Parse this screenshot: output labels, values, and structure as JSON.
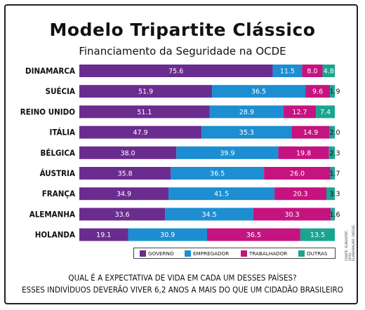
{
  "title": "Modelo Tripartite Clássico",
  "subtitle": "Financiamento da Seguridade na OCDE",
  "question_line1": "QUAL É A EXPECTATIVA DE VIDA EM CADA UM DESSES PAÍSES?",
  "question_line2": "ESSES INDIVÍDUOS DEVERÃO VIVER 6,2 ANOS A MAIS DO QUE UM CIDADÃO BRASILEIRO",
  "source_line1": "FONTE: EUROSTAT, 2015.",
  "source_line2": "ELABORAÇÃO: DIEESE.",
  "chart_data": {
    "type": "bar",
    "orientation": "horizontal",
    "stacked": true,
    "title": "Modelo Tripartite Clássico",
    "subtitle": "Financiamento da Seguridade na OCDE",
    "categories": [
      "DINAMARCA",
      "SUÉCIA",
      "REINO UNIDO",
      "ITÁLIA",
      "BÉLGICA",
      "ÁUSTRIA",
      "FRANÇA",
      "ALEMANHA",
      "HOLANDA"
    ],
    "series": [
      {
        "name": "GOVERNO",
        "color": "#6a2c8f",
        "values": [
          75.6,
          51.9,
          51.1,
          47.9,
          38.0,
          35.8,
          34.9,
          33.6,
          19.1
        ]
      },
      {
        "name": "EMPREGADOR",
        "color": "#1c8ed1",
        "values": [
          11.5,
          36.5,
          28.9,
          35.3,
          39.9,
          36.5,
          41.5,
          34.5,
          30.9
        ]
      },
      {
        "name": "TRABALHADOR",
        "color": "#c5137f",
        "values": [
          8.0,
          9.6,
          12.7,
          14.9,
          19.8,
          26.0,
          20.3,
          30.3,
          36.5
        ]
      },
      {
        "name": "OUTRAS",
        "color": "#1aa590",
        "values": [
          4.8,
          1.9,
          7.4,
          2.0,
          2.3,
          1.7,
          3.3,
          1.6,
          13.5
        ]
      }
    ],
    "value_labels": [
      [
        "75.6",
        "11.5",
        "8.0",
        "4.8"
      ],
      [
        "51.9",
        "36.5",
        "9.6",
        "1.9"
      ],
      [
        "51.1",
        "28.9",
        "12.7",
        "7.4"
      ],
      [
        "47.9",
        "35.3",
        "14.9",
        "2.0"
      ],
      [
        "38.0",
        "39.9",
        "19.8",
        "2.3"
      ],
      [
        "35.8",
        "36.5",
        "26.0",
        "1.7"
      ],
      [
        "34.9",
        "41.5",
        "20.3",
        "3.3"
      ],
      [
        "33.6",
        "34.5",
        "30.3",
        "1.6"
      ],
      [
        "19.1",
        "30.9",
        "36.5",
        "13.5"
      ]
    ],
    "xlim": [
      0,
      100
    ],
    "unit": "%",
    "legend_position": "bottom",
    "grid": false
  }
}
